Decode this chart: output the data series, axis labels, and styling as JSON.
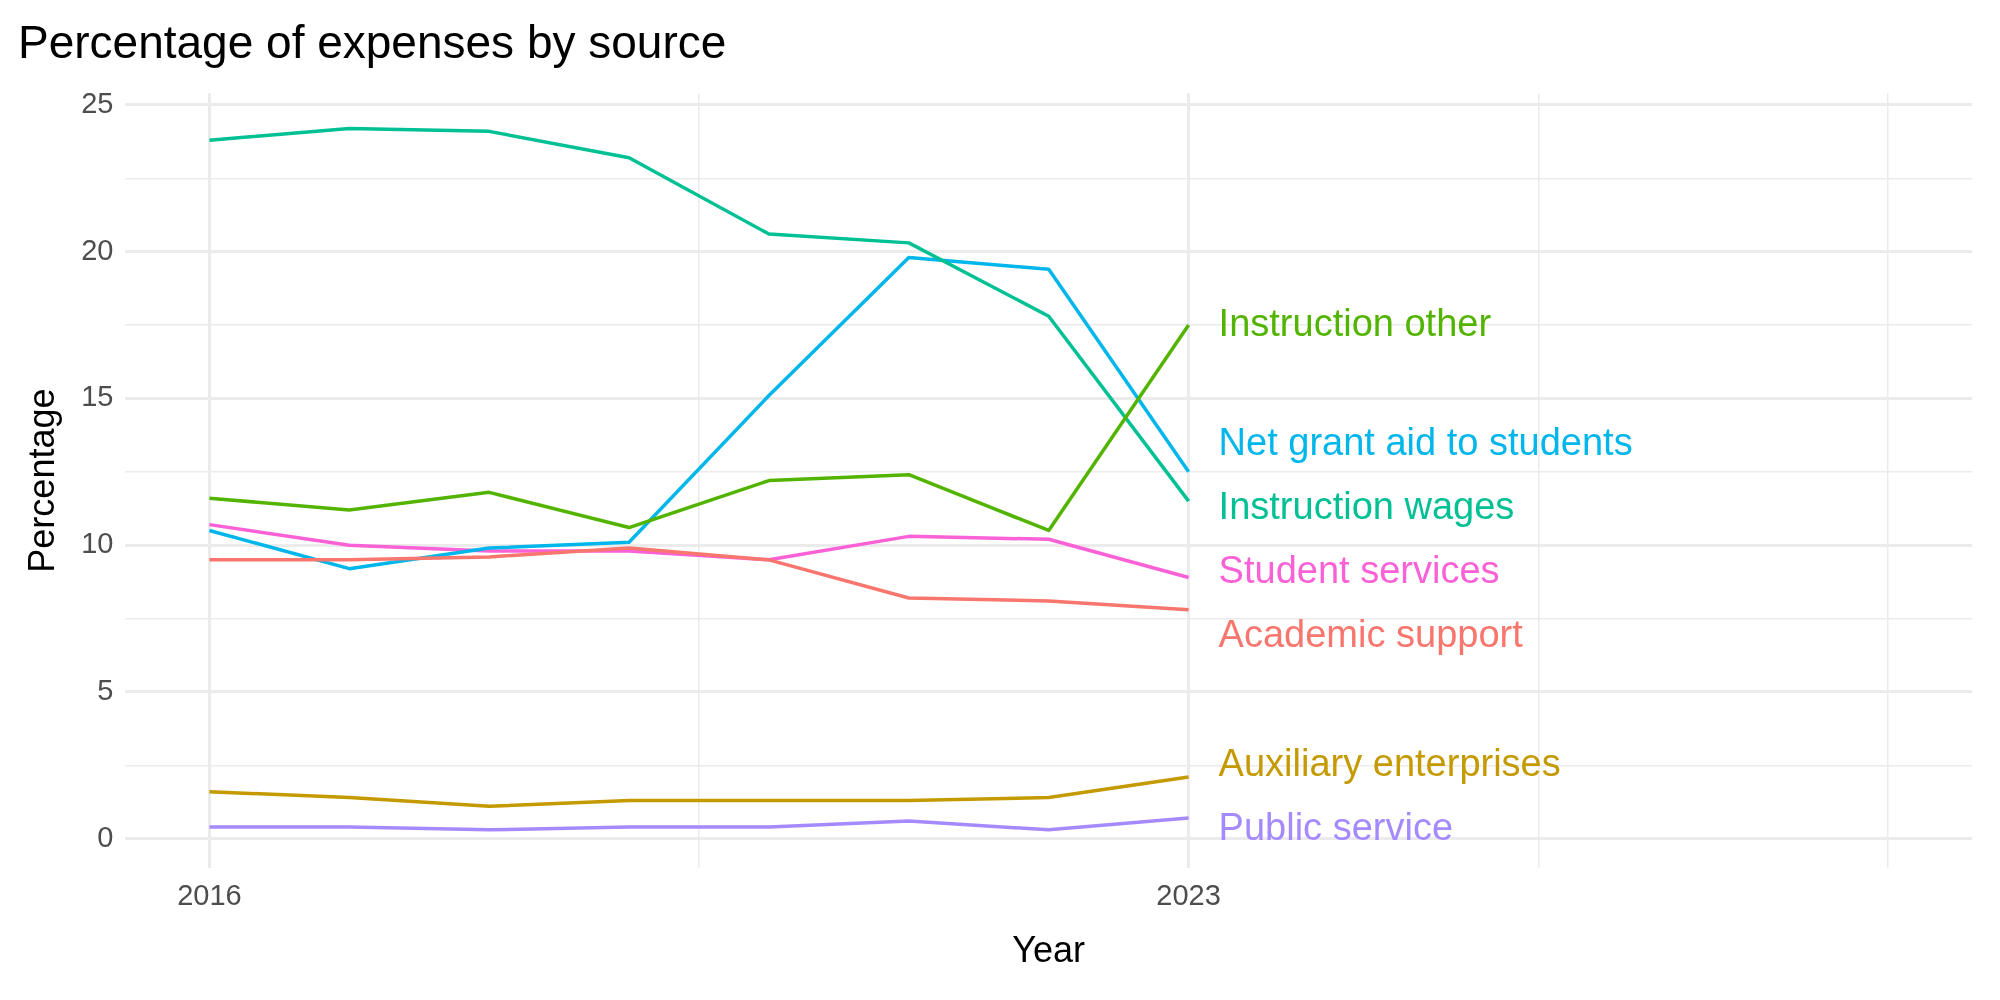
{
  "chart_data": {
    "type": "line",
    "title": "Percentage of expenses by source",
    "xlabel": "Year",
    "ylabel": "Percentage",
    "x": [
      2016,
      2017,
      2018,
      2019,
      2020,
      2021,
      2022,
      2023
    ],
    "series": [
      {
        "name": "Academic support",
        "color": "#f8766d",
        "values": [
          9.5,
          9.5,
          9.6,
          9.9,
          9.5,
          8.2,
          8.1,
          7.8
        ]
      },
      {
        "name": "Auxiliary enterprises",
        "color": "#c49a00",
        "values": [
          1.6,
          1.4,
          1.1,
          1.3,
          1.3,
          1.3,
          1.4,
          2.1
        ]
      },
      {
        "name": "Instruction other",
        "color": "#53b400",
        "values": [
          11.6,
          11.2,
          11.8,
          10.6,
          12.2,
          12.4,
          10.5,
          17.5
        ]
      },
      {
        "name": "Instruction wages",
        "color": "#00c094",
        "values": [
          23.8,
          24.2,
          24.1,
          23.2,
          20.6,
          20.3,
          17.8,
          11.5
        ]
      },
      {
        "name": "Net grant aid to students",
        "color": "#00b6eb",
        "values": [
          10.5,
          9.2,
          9.9,
          10.1,
          15.1,
          19.8,
          19.4,
          12.5
        ]
      },
      {
        "name": "Public service",
        "color": "#a58aff",
        "values": [
          0.4,
          0.4,
          0.3,
          0.4,
          0.4,
          0.6,
          0.3,
          0.7
        ]
      },
      {
        "name": "Student services",
        "color": "#fb61d7",
        "values": [
          10.7,
          10.0,
          9.8,
          9.8,
          9.5,
          10.3,
          10.2,
          8.9
        ]
      }
    ],
    "xlim": [
      2015.4,
      2028.6
    ],
    "xticks": [
      2016,
      {
        "value": 2019.5,
        "label": null
      },
      2023,
      {
        "value": 2025.5,
        "label": null
      },
      {
        "value": 2028,
        "label": null
      }
    ],
    "ylim": [
      -1,
      25.4
    ],
    "yticks": [
      0,
      {
        "value": 2.5,
        "label": null
      },
      5,
      {
        "value": 7.5,
        "label": null
      },
      10,
      {
        "value": 12.5,
        "label": null
      },
      15,
      {
        "value": 17.5,
        "label": null
      },
      20,
      {
        "value": 22.5,
        "label": null
      },
      25
    ],
    "grid": true,
    "legend": false,
    "line_style": "solid",
    "marker": "none"
  }
}
